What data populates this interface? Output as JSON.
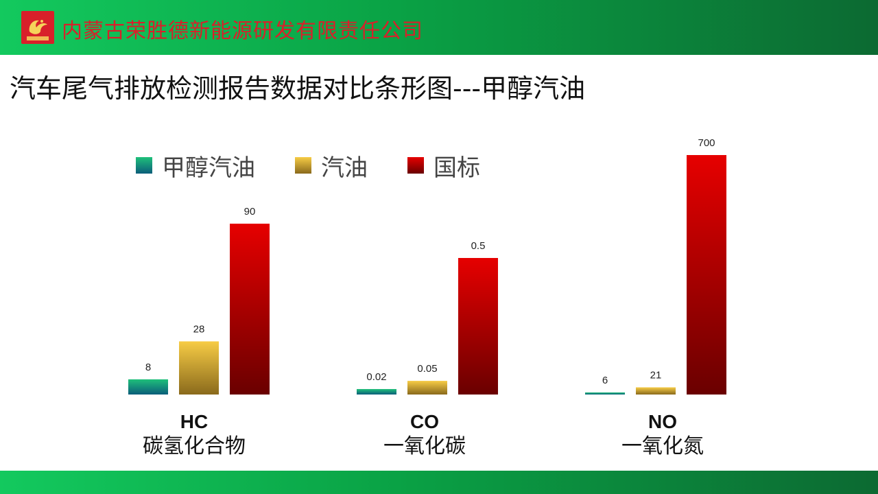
{
  "header": {
    "company": "内蒙古荣胜德新能源研发有限责任公司",
    "logo_text": "荣胜德"
  },
  "page_title": "汽车尾气排放检测报告数据对比条形图---甲醇汽油",
  "colors": {
    "band_start": "#13c95e",
    "band_end": "#0c6a32",
    "company_text": "#d8202a",
    "methanol_top": "#1fc07a",
    "methanol_bottom": "#0b5e7a",
    "gasoline_top": "#f7cc45",
    "gasoline_bottom": "#8a6a1c",
    "standard_top": "#e60000",
    "standard_bottom": "#6a0000"
  },
  "chart_data": {
    "type": "bar",
    "legend_position": "top-left",
    "grid": false,
    "categories": [
      {
        "code": "HC",
        "name": "碳氢化合物"
      },
      {
        "code": "CO",
        "name": "一氧化碳"
      },
      {
        "code": "NO",
        "name": "一氧化氮"
      }
    ],
    "series": [
      {
        "name": "甲醇汽油",
        "values": [
          8,
          0.02,
          6
        ],
        "labels": [
          "8",
          "0.02",
          "6"
        ]
      },
      {
        "name": "汽油",
        "values": [
          28,
          0.05,
          21
        ],
        "labels": [
          "28",
          "0.05",
          "21"
        ]
      },
      {
        "name": "国标",
        "values": [
          90,
          0.5,
          700
        ],
        "labels": [
          "90",
          "0.5",
          "700"
        ]
      }
    ]
  }
}
